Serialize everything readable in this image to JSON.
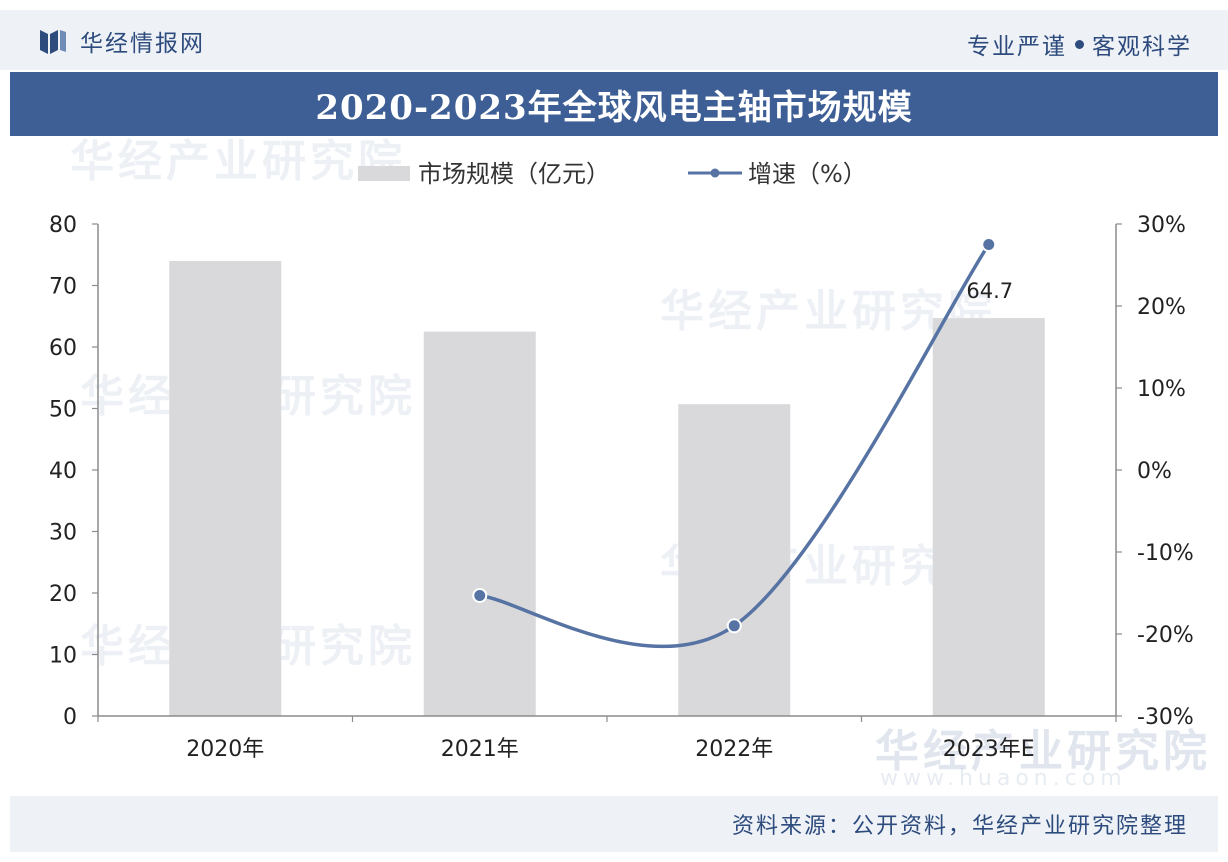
{
  "header": {
    "brand": "华经情报网",
    "slogan_left": "专业严谨",
    "slogan_right": "客观科学"
  },
  "title": "2020-2023年全球风电主轴市场规模",
  "watermark": {
    "text": "华经产业研究院",
    "url": "www.huaon.com"
  },
  "footer": {
    "source": "资料来源：公开资料，华经产业研究院整理"
  },
  "colors": {
    "bar": "#d9d9db",
    "line": "#5673a3",
    "brand": "#2d4b7d",
    "title_bg": "#3e5f96"
  },
  "chart_data": {
    "type": "bar",
    "categories": [
      "2020年",
      "2021年",
      "2022年",
      "2023年E"
    ],
    "series": [
      {
        "name": "市场规模（亿元）",
        "type": "bar",
        "axis": "left",
        "values": [
          74.0,
          62.5,
          50.7,
          64.7
        ],
        "data_labels": [
          null,
          null,
          null,
          "64.7"
        ]
      },
      {
        "name": "增速（%）",
        "type": "line",
        "axis": "right",
        "smooth": true,
        "values": [
          null,
          -15.3,
          -19.0,
          27.5
        ]
      }
    ],
    "left_axis": {
      "min": 0,
      "max": 80,
      "step": 10,
      "ticks": [
        "0",
        "10",
        "20",
        "30",
        "40",
        "50",
        "60",
        "70",
        "80"
      ]
    },
    "right_axis": {
      "min": -30,
      "max": 30,
      "step": 10,
      "ticks": [
        "-30%",
        "-20%",
        "-10%",
        "0%",
        "10%",
        "20%",
        "30%"
      ]
    },
    "legend_position": "top-center",
    "grid": false
  }
}
